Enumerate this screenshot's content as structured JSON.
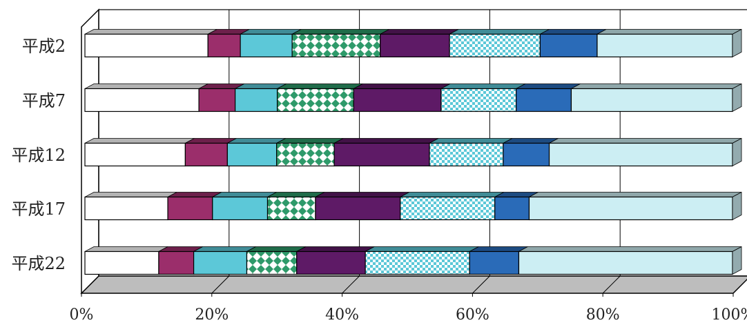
{
  "chart_data": {
    "type": "bar",
    "orientation": "horizontal",
    "stacked": true,
    "percent": true,
    "three_d": true,
    "categories": [
      "平成2",
      "平成7",
      "平成12",
      "平成17",
      "平成22"
    ],
    "xlim": [
      0,
      100
    ],
    "xticks": [
      "0%",
      "20%",
      "40%",
      "60%",
      "80%",
      "100%"
    ],
    "grid": true,
    "legend": "none",
    "series": [
      {
        "values": [
          19,
          17.6,
          15.5,
          12.8,
          11.4
        ],
        "color": "#ffffff",
        "pattern": "none"
      },
      {
        "values": [
          5,
          5.6,
          6.5,
          6.9,
          5.4
        ],
        "color": "#9b2e6b",
        "pattern": "none"
      },
      {
        "values": [
          8,
          6.5,
          7.6,
          8.5,
          8.2
        ],
        "color": "#5cc8d8",
        "pattern": "none"
      },
      {
        "values": [
          13.6,
          11.8,
          8.9,
          7.4,
          7.7
        ],
        "color": "#2e9a6a",
        "pattern": "diamond"
      },
      {
        "values": [
          10.7,
          13.5,
          14.7,
          13.1,
          10.6
        ],
        "color": "#5e1a66",
        "pattern": "none"
      },
      {
        "values": [
          14,
          11.6,
          11.4,
          14.6,
          16.1
        ],
        "color": "#5cc8d8",
        "pattern": "checker"
      },
      {
        "values": [
          8.8,
          8.5,
          7.1,
          5.3,
          7.6
        ],
        "color": "#2a6bb8",
        "pattern": "none"
      },
      {
        "values": [
          20.9,
          24.9,
          28.3,
          31.4,
          33
        ],
        "color": "#cceef3",
        "pattern": "none"
      }
    ]
  }
}
